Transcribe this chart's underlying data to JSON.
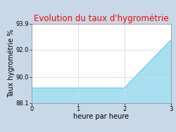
{
  "title": "Evolution du taux d'hygrométrie",
  "title_color": "#ff0000",
  "xlabel": "heure par heure",
  "ylabel": "Taux hygrométrie %",
  "x_data": [
    0,
    2,
    3
  ],
  "y_data": [
    89.2,
    89.2,
    92.7
  ],
  "ylim": [
    88.1,
    93.9
  ],
  "xlim": [
    0,
    3
  ],
  "yticks": [
    88.1,
    90.0,
    92.0,
    93.9
  ],
  "ytick_labels": [
    "88.1",
    "90.0",
    "92.0",
    "93.9"
  ],
  "xticks": [
    0,
    1,
    2,
    3
  ],
  "line_color": "#6cc8df",
  "fill_color": "#a8dff0",
  "background_color": "#c8d8e8",
  "plot_bg_color": "#ffffff",
  "grid_color": "#ccddee",
  "title_fontsize": 8.5,
  "axis_label_fontsize": 7,
  "tick_fontsize": 6
}
